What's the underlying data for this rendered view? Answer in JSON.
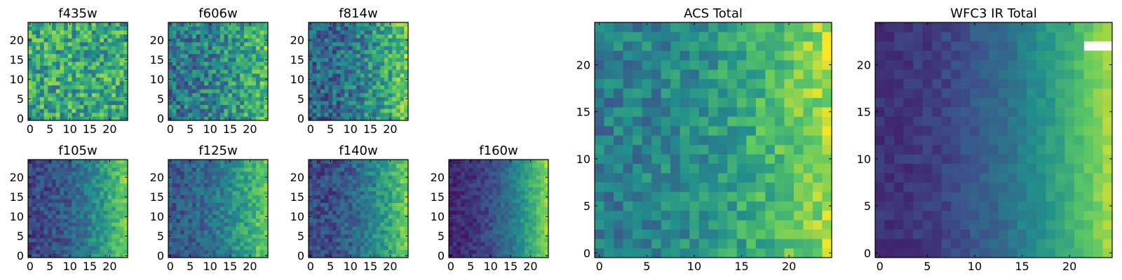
{
  "figure": {
    "colormap_stops": [
      "#440154",
      "#3b528b",
      "#21918c",
      "#5ec962",
      "#fde725"
    ],
    "chart_data": [
      {
        "type": "heatmap",
        "title": "f435w",
        "shape": [
          25,
          25
        ],
        "xlim": [
          -0.5,
          24.5
        ],
        "ylim": [
          -0.5,
          24.5
        ],
        "xticks": [
          "0",
          "5",
          "10",
          "15",
          "20"
        ],
        "yticks": [
          "0",
          "5",
          "10",
          "15",
          "20"
        ],
        "pattern": {
          "base": 0.6,
          "gradient": 0.0,
          "noise": 0.25,
          "seed": 11
        }
      },
      {
        "type": "heatmap",
        "title": "f606w",
        "shape": [
          25,
          25
        ],
        "xlim": [
          -0.5,
          24.5
        ],
        "ylim": [
          -0.5,
          24.5
        ],
        "xticks": [
          "0",
          "5",
          "10",
          "15",
          "20"
        ],
        "yticks": [
          "0",
          "5",
          "10",
          "15",
          "20"
        ],
        "pattern": {
          "base": 0.4,
          "gradient": 0.3,
          "noise": 0.22,
          "seed": 23
        }
      },
      {
        "type": "heatmap",
        "title": "f814w",
        "shape": [
          25,
          25
        ],
        "xlim": [
          -0.5,
          24.5
        ],
        "ylim": [
          -0.5,
          24.5
        ],
        "xticks": [
          "0",
          "5",
          "10",
          "15",
          "20"
        ],
        "yticks": [
          "0",
          "5",
          "10",
          "15",
          "20"
        ],
        "pattern": {
          "base": 0.32,
          "gradient": 0.45,
          "noise": 0.2,
          "seed": 37
        }
      },
      {
        "type": "heatmap",
        "title": "f105w",
        "shape": [
          25,
          25
        ],
        "xlim": [
          -0.5,
          24.5
        ],
        "ylim": [
          -0.5,
          24.5
        ],
        "xticks": [
          "0",
          "5",
          "10",
          "15",
          "20"
        ],
        "yticks": [
          "0",
          "5",
          "10",
          "15",
          "20"
        ],
        "pattern": {
          "base": 0.22,
          "gradient": 0.55,
          "noise": 0.12,
          "seed": 41
        }
      },
      {
        "type": "heatmap",
        "title": "f125w",
        "shape": [
          25,
          25
        ],
        "xlim": [
          -0.5,
          24.5
        ],
        "ylim": [
          -0.5,
          24.5
        ],
        "xticks": [
          "0",
          "5",
          "10",
          "15",
          "20"
        ],
        "yticks": [
          "0",
          "5",
          "10",
          "15",
          "20"
        ],
        "pattern": {
          "base": 0.28,
          "gradient": 0.5,
          "noise": 0.13,
          "seed": 53
        }
      },
      {
        "type": "heatmap",
        "title": "f140w",
        "shape": [
          25,
          25
        ],
        "xlim": [
          -0.5,
          24.5
        ],
        "ylim": [
          -0.5,
          24.5
        ],
        "xticks": [
          "0",
          "5",
          "10",
          "15",
          "20"
        ],
        "yticks": [
          "0",
          "5",
          "10",
          "15",
          "20"
        ],
        "pattern": {
          "base": 0.22,
          "gradient": 0.55,
          "noise": 0.13,
          "seed": 61
        }
      },
      {
        "type": "heatmap",
        "title": "f160w",
        "shape": [
          25,
          25
        ],
        "xlim": [
          -0.5,
          24.5
        ],
        "ylim": [
          -0.5,
          24.5
        ],
        "xticks": [
          "0",
          "5",
          "10",
          "15",
          "20"
        ],
        "yticks": [
          "0",
          "5",
          "10",
          "15",
          "20"
        ],
        "pattern": {
          "base": 0.12,
          "gradient": 0.7,
          "noise": 0.08,
          "seed": 71
        }
      },
      {
        "type": "heatmap",
        "title": "ACS Total",
        "shape": [
          25,
          25
        ],
        "xlim": [
          -0.5,
          24.5
        ],
        "ylim": [
          -0.5,
          24.5
        ],
        "xticks": [
          "0",
          "5",
          "10",
          "15",
          "20"
        ],
        "yticks": [
          "0",
          "5",
          "10",
          "15",
          "20"
        ],
        "pattern": {
          "base": 0.42,
          "gradient": 0.45,
          "noise": 0.14,
          "seed": 83
        }
      },
      {
        "type": "heatmap",
        "title": "WFC3 IR Total",
        "shape": [
          25,
          25
        ],
        "xlim": [
          -0.5,
          24.5
        ],
        "ylim": [
          -0.5,
          24.5
        ],
        "xticks": [
          "0",
          "5",
          "10",
          "15",
          "20"
        ],
        "yticks": [
          "0",
          "5",
          "10",
          "15",
          "20"
        ],
        "pattern": {
          "base": 0.15,
          "gradient": 0.7,
          "noise": 0.05,
          "seed": 97
        },
        "masked_cells": [
          [
            22,
            22
          ],
          [
            22,
            23
          ],
          [
            22,
            24
          ]
        ]
      }
    ]
  }
}
